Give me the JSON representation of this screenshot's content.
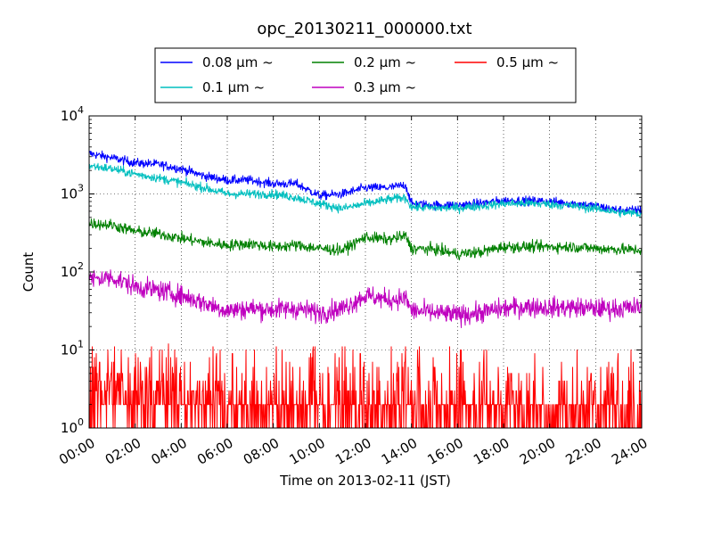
{
  "chart_data": {
    "type": "line",
    "title": "opc_20130211_000000.txt",
    "xlabel": "Time on 2013-02-11 (JST)",
    "ylabel": "Count",
    "x_range": [
      "00:00",
      "24:00"
    ],
    "x_ticks": [
      "00:00",
      "02:00",
      "04:00",
      "06:00",
      "08:00",
      "10:00",
      "12:00",
      "14:00",
      "16:00",
      "18:00",
      "20:00",
      "22:00",
      "24:00"
    ],
    "yscale": "log",
    "ylim": [
      1,
      10000
    ],
    "y_ticks": [
      {
        "base": "10",
        "exp": "0",
        "value": 1
      },
      {
        "base": "10",
        "exp": "1",
        "value": 10
      },
      {
        "base": "10",
        "exp": "2",
        "value": 100
      },
      {
        "base": "10",
        "exp": "3",
        "value": 1000
      },
      {
        "base": "10",
        "exp": "4",
        "value": 10000
      }
    ],
    "grid": true,
    "legend_position": "top-center",
    "series": [
      {
        "name": "0.08 μm ~",
        "color": "#0000ff",
        "x": [
          "00:00",
          "01:00",
          "02:00",
          "03:00",
          "04:00",
          "05:00",
          "06:00",
          "07:00",
          "08:00",
          "09:00",
          "10:00",
          "11:00",
          "12:00",
          "13:00",
          "13:45",
          "14:00",
          "15:00",
          "16:00",
          "17:00",
          "18:00",
          "19:00",
          "20:00",
          "21:00",
          "22:00",
          "23:00",
          "24:00"
        ],
        "values": [
          3300,
          2900,
          2500,
          2400,
          2100,
          1700,
          1500,
          1500,
          1350,
          1350,
          950,
          1000,
          1200,
          1200,
          1300,
          750,
          720,
          720,
          760,
          820,
          820,
          800,
          760,
          700,
          620,
          620
        ]
      },
      {
        "name": "0.1 μm ~",
        "color": "#00bfbf",
        "x": [
          "00:00",
          "01:00",
          "02:00",
          "03:00",
          "04:00",
          "05:00",
          "06:00",
          "07:00",
          "08:00",
          "09:00",
          "10:00",
          "11:00",
          "12:00",
          "13:00",
          "13:45",
          "14:00",
          "15:00",
          "16:00",
          "17:00",
          "18:00",
          "19:00",
          "20:00",
          "21:00",
          "22:00",
          "23:00",
          "24:00"
        ],
        "values": [
          2300,
          2100,
          1800,
          1600,
          1400,
          1200,
          1000,
          1000,
          1000,
          900,
          750,
          650,
          750,
          850,
          900,
          680,
          660,
          660,
          700,
          750,
          760,
          740,
          700,
          650,
          580,
          560
        ]
      },
      {
        "name": "0.2 μm ~",
        "color": "#008000",
        "x": [
          "00:00",
          "01:00",
          "02:00",
          "03:00",
          "04:00",
          "05:00",
          "06:00",
          "07:00",
          "08:00",
          "09:00",
          "10:00",
          "11:00",
          "12:00",
          "13:00",
          "13:45",
          "14:00",
          "15:00",
          "16:00",
          "17:00",
          "18:00",
          "19:00",
          "20:00",
          "21:00",
          "22:00",
          "23:00",
          "24:00"
        ],
        "values": [
          420,
          400,
          330,
          310,
          270,
          240,
          220,
          230,
          210,
          220,
          200,
          190,
          280,
          260,
          290,
          200,
          195,
          170,
          180,
          210,
          210,
          210,
          210,
          200,
          195,
          190
        ]
      },
      {
        "name": "0.3 μm ~",
        "color": "#bf00bf",
        "x": [
          "00:00",
          "01:00",
          "02:00",
          "03:00",
          "04:00",
          "05:00",
          "06:00",
          "07:00",
          "08:00",
          "09:00",
          "10:00",
          "11:00",
          "12:00",
          "13:00",
          "13:45",
          "14:00",
          "15:00",
          "16:00",
          "17:00",
          "18:00",
          "19:00",
          "20:00",
          "21:00",
          "22:00",
          "23:00",
          "24:00"
        ],
        "values": [
          80,
          85,
          65,
          58,
          50,
          40,
          32,
          34,
          33,
          34,
          30,
          34,
          50,
          44,
          46,
          32,
          30,
          28,
          30,
          34,
          36,
          35,
          35,
          34,
          34,
          35
        ]
      },
      {
        "name": "0.5 μm ~",
        "color": "#ff0000",
        "x": [
          "00:00",
          "01:00",
          "02:00",
          "03:00",
          "04:00",
          "05:00",
          "06:00",
          "07:00",
          "08:00",
          "09:00",
          "10:00",
          "11:00",
          "12:00",
          "13:00",
          "13:45",
          "14:00",
          "15:00",
          "16:00",
          "17:00",
          "18:00",
          "19:00",
          "20:00",
          "21:00",
          "22:00",
          "23:00",
          "24:00"
        ],
        "values": [
          4,
          4,
          3,
          3,
          3,
          2.5,
          2,
          2,
          2,
          2,
          2,
          2,
          2,
          2.5,
          2.5,
          2,
          2,
          2,
          2,
          2,
          2,
          2,
          2,
          2,
          2,
          2
        ]
      }
    ]
  }
}
